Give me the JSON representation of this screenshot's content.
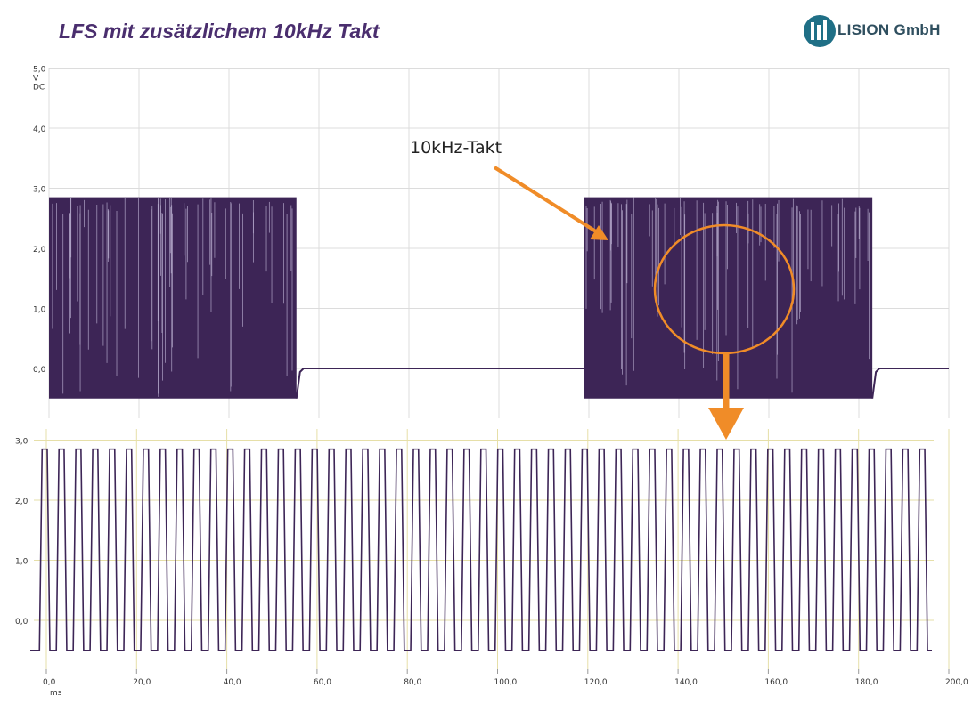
{
  "slide": {
    "title": "LFS mit zusätzlichem 10kHz Takt",
    "logo_text": "LISION GmbH",
    "annotation": "10kHz-Takt"
  },
  "colors": {
    "signal": "#3d2556",
    "grid": "#dcdcdc",
    "zoom_grid": "#e6dfa8",
    "highlight": "#f08c28"
  },
  "chart_data": [
    {
      "type": "line",
      "title": "",
      "ylim": [
        -0.5,
        5.0
      ],
      "y_ticks": [
        "5,0",
        "4,0",
        "3,0",
        "2,0",
        "1,0",
        "0,0"
      ],
      "y_unit_label": [
        "V",
        "DC"
      ],
      "grid": true,
      "series": [
        {
          "values_description_free": true,
          "segments": [
            {
              "x_start": 0,
              "x_end": 55,
              "type": "clock",
              "low": -0.5,
              "high": 2.85
            },
            {
              "x_start": 55,
              "x_end": 119,
              "type": "dc",
              "level": 0.0
            },
            {
              "x_start": 119,
              "x_end": 183,
              "type": "clock",
              "low": -0.5,
              "high": 2.85
            },
            {
              "x_start": 183,
              "x_end": 200,
              "type": "dc",
              "level": 0.0
            }
          ]
        }
      ]
    },
    {
      "type": "line",
      "title": "",
      "ylim": [
        -0.5,
        3.0
      ],
      "y_ticks": [
        "3,0",
        "2,0",
        "1,0",
        "0,0"
      ],
      "x_ticks": [
        "0,0",
        "20,0",
        "40,0",
        "60,0",
        "80,0",
        "100,0",
        "120,0",
        "140,0",
        "160,0",
        "180,0",
        "200,0"
      ],
      "xlabel": "ms",
      "grid": true,
      "series": [
        {
          "pulses": 53,
          "low": -0.5,
          "high": 2.85
        }
      ]
    }
  ]
}
